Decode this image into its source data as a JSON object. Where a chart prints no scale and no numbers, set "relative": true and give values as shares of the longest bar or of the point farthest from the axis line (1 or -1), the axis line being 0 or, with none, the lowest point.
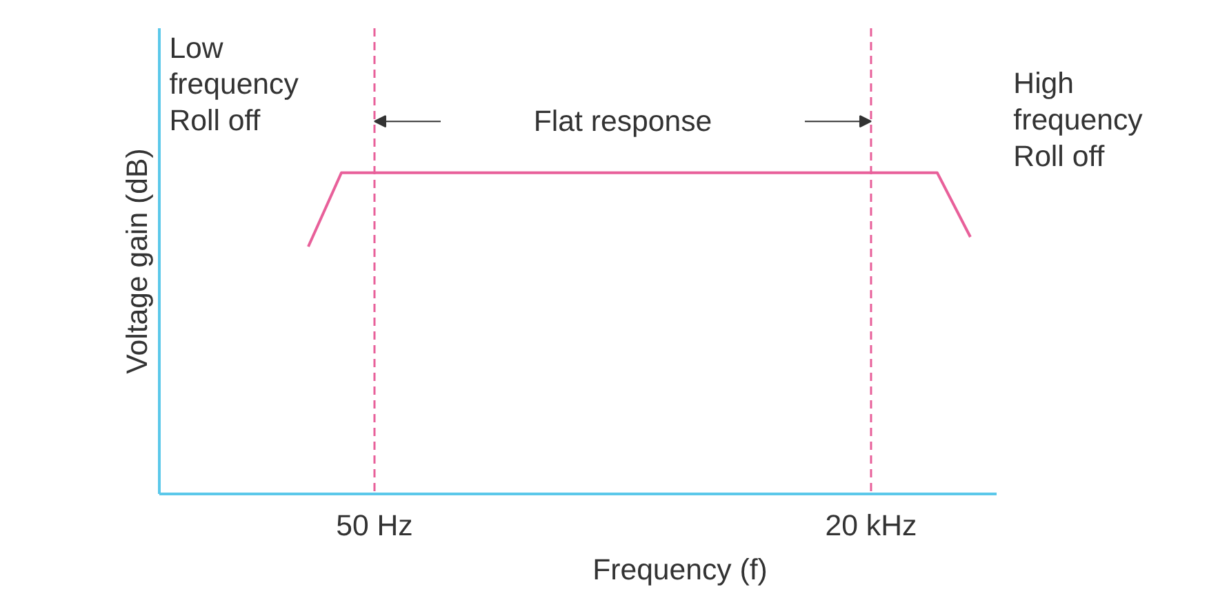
{
  "chart_data": {
    "type": "line",
    "relative": true,
    "xlabel": "Frequency (f)",
    "ylabel": "Voltage gain (dB)",
    "categories": [
      null,
      null,
      "50 Hz",
      null,
      null,
      null,
      null,
      null,
      null,
      null,
      null,
      null,
      null,
      null,
      null,
      null,
      null,
      "20 kHz",
      null,
      null,
      null
    ],
    "series": [
      {
        "color": "#e8609a",
        "values": [
          0.77,
          1,
          1,
          1,
          1,
          1,
          1,
          1,
          1,
          1,
          1,
          1,
          1,
          1,
          1,
          1,
          1,
          1,
          1,
          1,
          0.8
        ]
      }
    ],
    "ref_lines": [
      {
        "axis": "x",
        "value": "50 Hz",
        "color": "#e8609a",
        "line_style": "dashed"
      },
      {
        "axis": "x",
        "value": "20 kHz",
        "color": "#e8609a",
        "line_style": "dashed"
      }
    ],
    "annotations": [
      "Low\nfrequency\nRoll off",
      "Flat response",
      "High\nfrequency\nRoll off"
    ]
  }
}
